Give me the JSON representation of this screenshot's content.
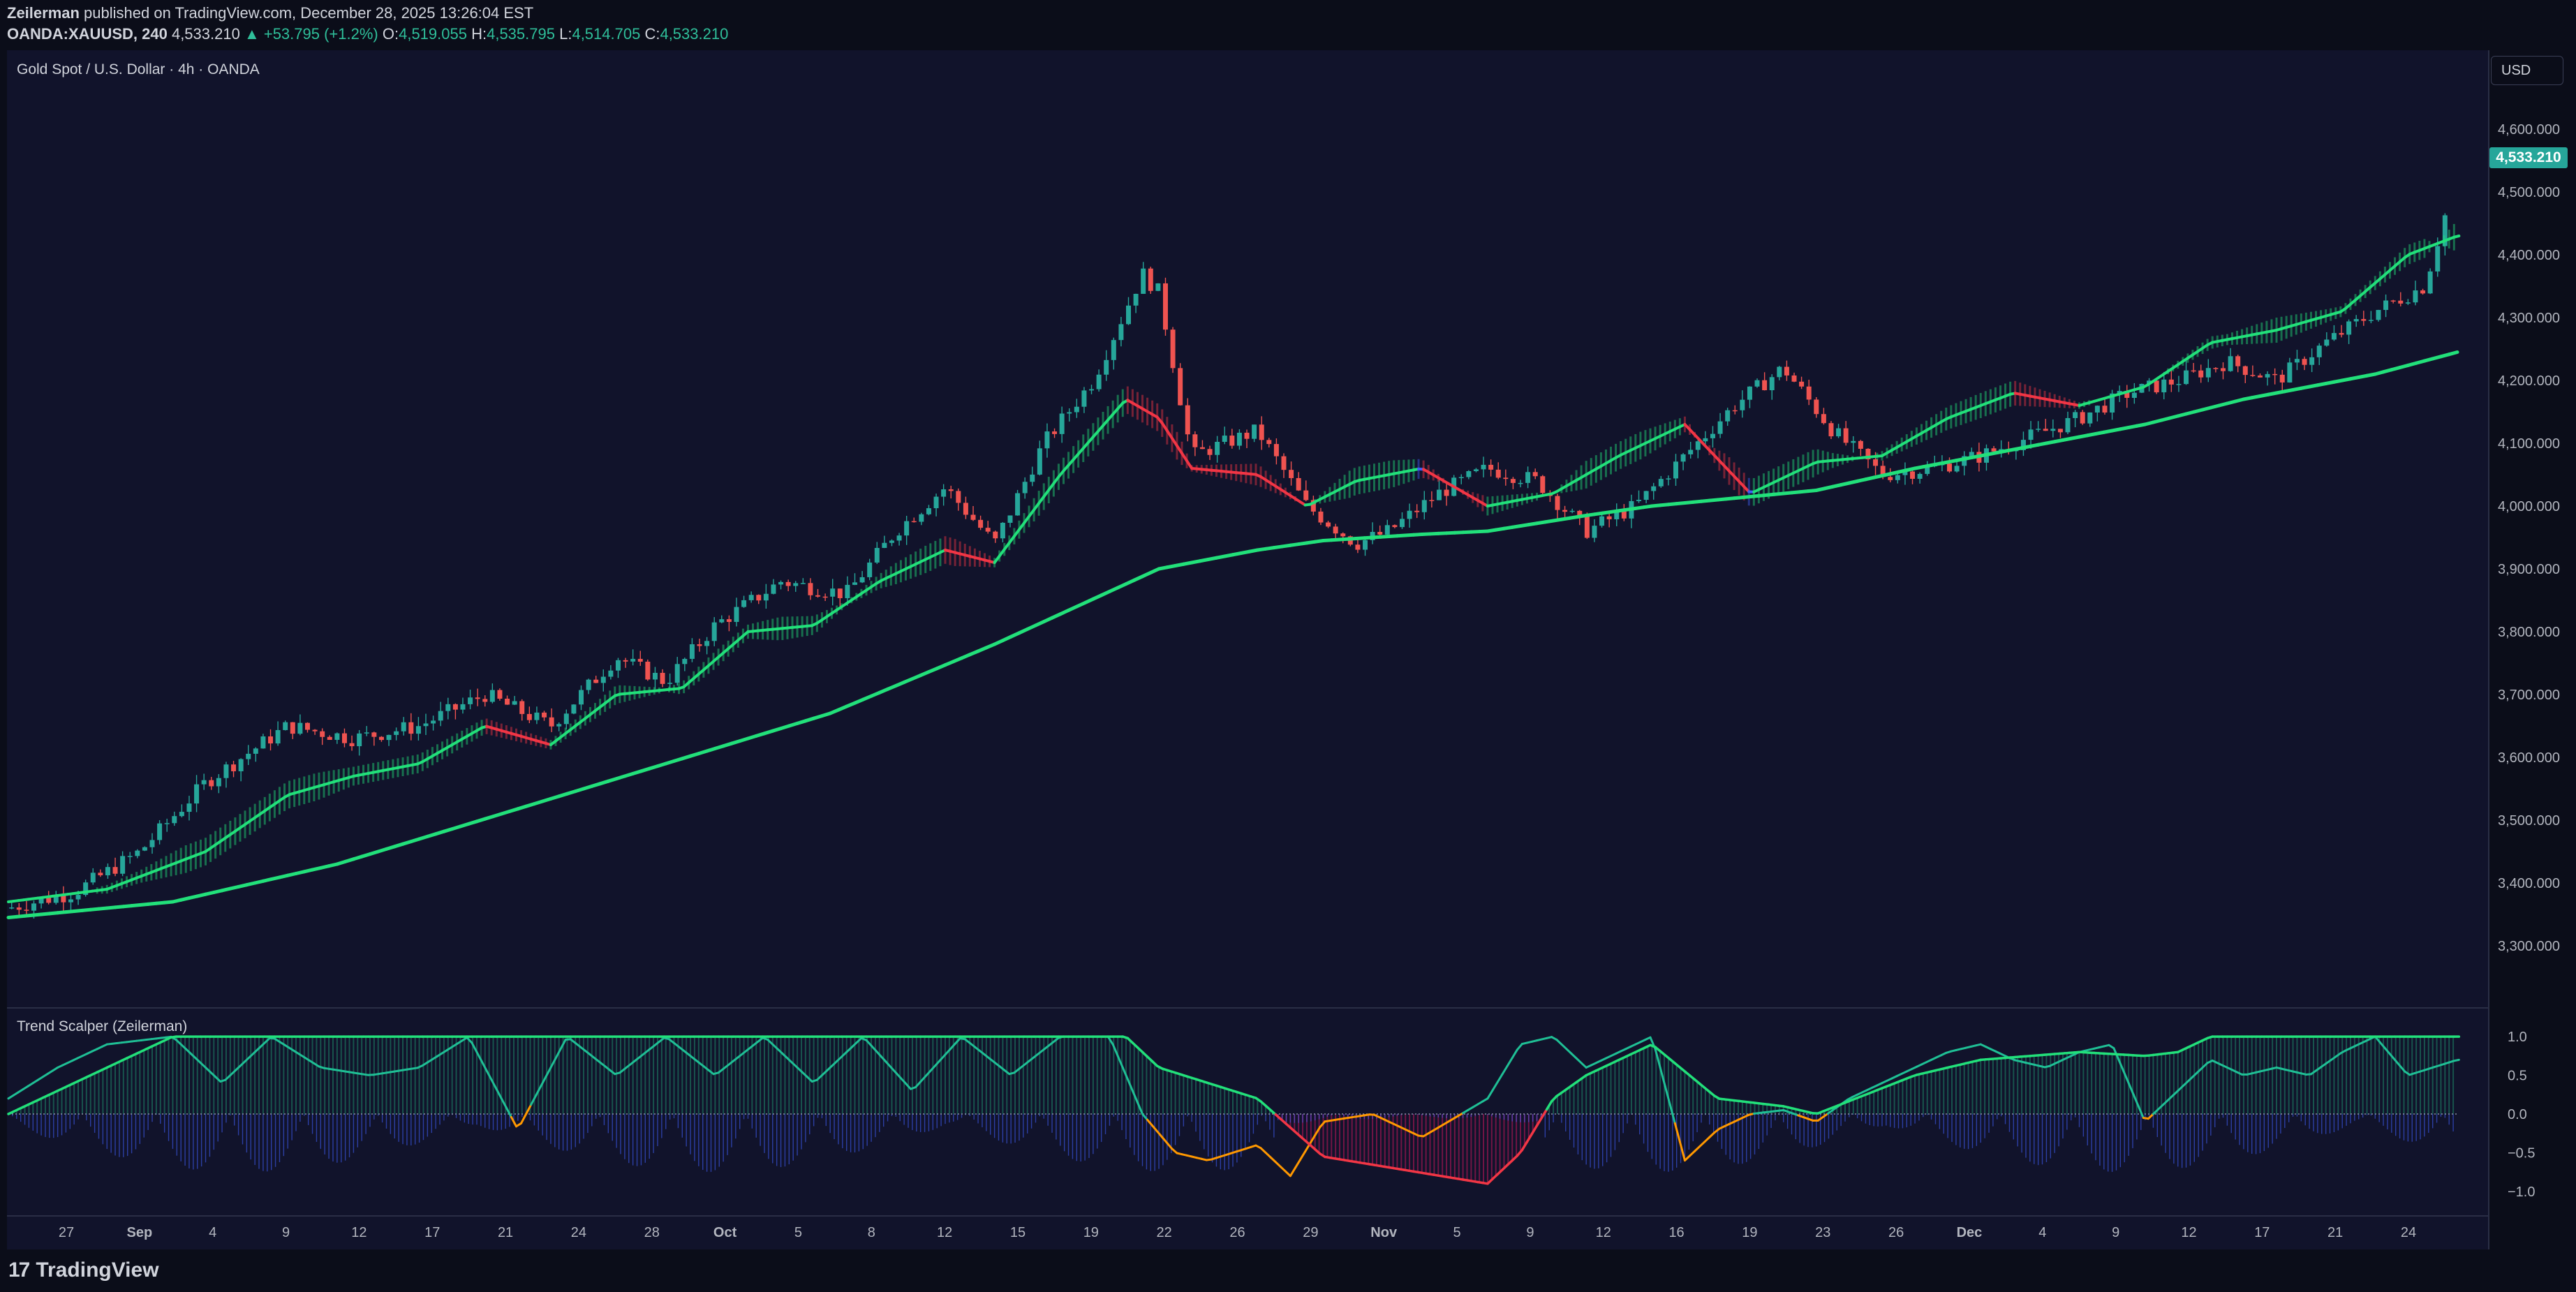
{
  "header": {
    "publisher": "Zeilerman",
    "published_text": " published on TradingView.com, December 28, 2025 13:26:04 EST",
    "symbol": "OANDA:XAUUSD, 240",
    "last": "4,533.210",
    "change": "▲ +53.795 (+1.2%)",
    "o_label": "O:",
    "o_value": "4,519.055",
    "h_label": "H:",
    "h_value": "4,535.795",
    "l_label": "L:",
    "l_value": "4,514.705",
    "c_label": "C:",
    "c_value": "4,533.210"
  },
  "main_pane": {
    "title": "Gold Spot / U.S. Dollar · 4h · OANDA",
    "currency_button": "USD",
    "last_price_tag": "4,533.210"
  },
  "indicator_pane": {
    "title": "Trend Scalper (Zeilerman)"
  },
  "footer": {
    "logo_mark": "17",
    "brand": "TradingView"
  },
  "colors": {
    "background": "#11132b",
    "up": "#26a69a",
    "down": "#ef5350",
    "trend_green": "#22e07a",
    "trend_red": "#f23645",
    "trend_orange": "#ff9800",
    "trend_blue": "#3f5ef5",
    "osc_fill_green": "#1f8a6a",
    "osc_fill_red": "#c2185b"
  },
  "chart_data": [
    {
      "type": "candlestick",
      "title": "Gold Spot / U.S. Dollar · 4h · OANDA",
      "y_ticks": [
        "4,600.000",
        "4,500.000",
        "4,400.000",
        "4,300.000",
        "4,200.000",
        "4,100.000",
        "4,000.000",
        "3,900.000",
        "3,800.000",
        "3,700.000",
        "3,600.000",
        "3,500.000",
        "3,400.000",
        "3,300.000"
      ],
      "ylim": [
        3250,
        4650
      ],
      "x_ticks": [
        "27",
        "Sep",
        "4",
        "9",
        "12",
        "17",
        "21",
        "24",
        "28",
        "Oct",
        "5",
        "8",
        "12",
        "15",
        "19",
        "22",
        "26",
        "29",
        "Nov",
        "5",
        "9",
        "12",
        "16",
        "19",
        "23",
        "26",
        "Dec",
        "4",
        "9",
        "12",
        "17",
        "21",
        "24"
      ],
      "price_path": {
        "x": [
          0,
          40,
          80,
          120,
          170,
          210,
          250,
          290,
          330,
          370,
          400,
          430,
          470,
          510,
          540,
          570,
          600,
          630,
          660,
          690,
          700,
          720,
          760,
          790,
          820,
          840,
          870,
          900,
          930,
          960,
          990,
          1020,
          1050,
          1080,
          1110,
          1140,
          1170,
          1200,
          1230,
          1260,
          1290,
          1320,
          1350,
          1380,
          1410,
          1440,
          1470,
          1490
        ],
        "y": [
          3360,
          3385,
          3450,
          3560,
          3650,
          3630,
          3650,
          3700,
          3650,
          3760,
          3720,
          3810,
          3880,
          3860,
          3960,
          4030,
          3940,
          4100,
          4200,
          4370,
          4340,
          4080,
          4120,
          4000,
          3940,
          3960,
          4020,
          4060,
          4040,
          3960,
          4000,
          4080,
          4160,
          4220,
          4120,
          4050,
          4060,
          4080,
          4110,
          4140,
          4180,
          4200,
          4230,
          4200,
          4260,
          4310,
          4350,
          4530
        ]
      },
      "trend_line": {
        "x": [
          0,
          60,
          120,
          170,
          210,
          250,
          290,
          330,
          370,
          410,
          450,
          490,
          530,
          570,
          600,
          640,
          680,
          700,
          720,
          760,
          790,
          820,
          860,
          900,
          940,
          980,
          1020,
          1060,
          1100,
          1140,
          1180,
          1220,
          1260,
          1300,
          1340,
          1380,
          1420,
          1460,
          1490
        ],
        "y": [
          3370,
          3390,
          3450,
          3540,
          3570,
          3590,
          3650,
          3620,
          3700,
          3710,
          3800,
          3810,
          3880,
          3930,
          3910,
          4050,
          4170,
          4140,
          4060,
          4050,
          4000,
          4040,
          4060,
          4000,
          4020,
          4080,
          4130,
          4020,
          4070,
          4080,
          4140,
          4180,
          4160,
          4190,
          4260,
          4280,
          4310,
          4400,
          4430
        ]
      },
      "baseline_line": {
        "x": [
          0,
          100,
          200,
          300,
          400,
          500,
          600,
          700,
          760,
          800,
          860,
          900,
          960,
          1000,
          1060,
          1100,
          1160,
          1200,
          1260,
          1300,
          1360,
          1400,
          1440,
          1490
        ],
        "y": [
          3345,
          3370,
          3430,
          3510,
          3590,
          3670,
          3780,
          3900,
          3930,
          3945,
          3955,
          3960,
          3985,
          4000,
          4015,
          4025,
          4060,
          4080,
          4110,
          4130,
          4170,
          4190,
          4210,
          4245
        ]
      }
    },
    {
      "type": "area",
      "title": "Trend Scalper (Zeilerman)",
      "y_ticks": [
        "1.0",
        "0.5",
        "0.0",
        "−0.5",
        "−1.0"
      ],
      "ylim": [
        -1.1,
        1.1
      ],
      "oscillator": {
        "x": [
          0,
          30,
          60,
          100,
          130,
          160,
          190,
          220,
          250,
          280,
          310,
          340,
          370,
          400,
          430,
          460,
          490,
          520,
          550,
          580,
          610,
          640,
          670,
          690,
          710,
          730,
          760,
          780,
          800,
          830,
          860,
          900,
          920,
          940,
          960,
          980,
          1000,
          1020,
          1040,
          1060,
          1080,
          1100,
          1120,
          1140,
          1160,
          1180,
          1200,
          1220,
          1240,
          1260,
          1280,
          1300,
          1320,
          1340,
          1360,
          1380,
          1400,
          1420,
          1440,
          1460,
          1490
        ],
        "y": [
          0.2,
          0.6,
          0.9,
          1.0,
          0.4,
          1.0,
          0.6,
          0.5,
          0.6,
          1.0,
          -0.2,
          1.0,
          0.5,
          1.0,
          0.5,
          1.0,
          0.4,
          1.0,
          0.3,
          1.0,
          0.5,
          1.0,
          1.0,
          0.0,
          -0.5,
          -0.6,
          -0.4,
          -0.8,
          -0.1,
          0.0,
          -0.3,
          0.2,
          0.9,
          1.0,
          0.6,
          0.8,
          1.0,
          -0.6,
          -0.2,
          0.0,
          0.05,
          -0.1,
          0.2,
          0.4,
          0.6,
          0.8,
          0.9,
          0.7,
          0.6,
          0.8,
          0.9,
          -0.1,
          0.3,
          0.7,
          0.5,
          0.6,
          0.5,
          0.8,
          1.0,
          0.5,
          0.7
        ]
      },
      "slow_line": {
        "x": [
          0,
          100,
          130,
          200,
          400,
          600,
          680,
          700,
          730,
          760,
          800,
          900,
          920,
          940,
          960,
          1000,
          1040,
          1080,
          1100,
          1160,
          1200,
          1260,
          1300,
          1320,
          1340,
          1460,
          1490
        ],
        "y": [
          0.0,
          1.0,
          1.0,
          1.0,
          1.0,
          1.0,
          1.0,
          0.6,
          0.4,
          0.2,
          -0.55,
          -0.9,
          -0.5,
          0.2,
          0.5,
          0.9,
          0.2,
          0.1,
          0.0,
          0.5,
          0.7,
          0.8,
          0.75,
          0.8,
          1.0,
          1.0,
          1.0
        ]
      }
    }
  ]
}
